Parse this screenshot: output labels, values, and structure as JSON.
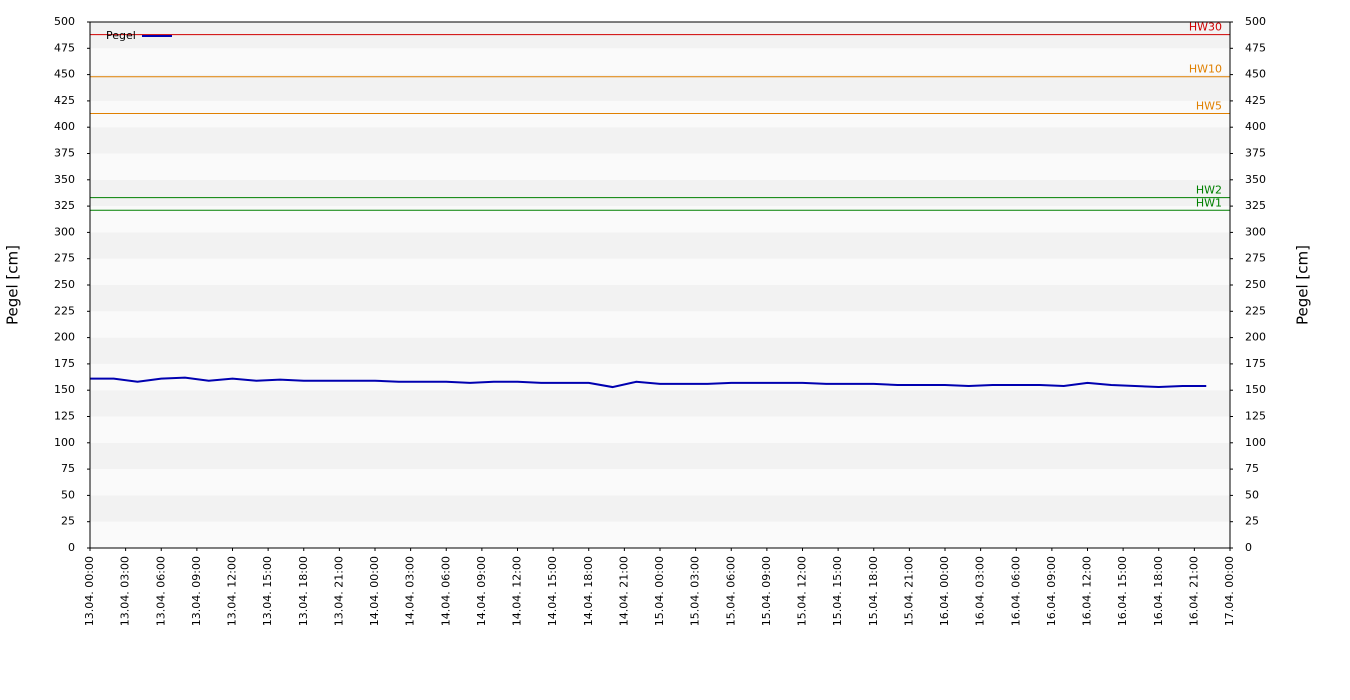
{
  "chart_data": {
    "type": "line",
    "ylabel": "Pegel [cm]",
    "y2label": "Pegel [cm]",
    "ylim": [
      0,
      500
    ],
    "yticks": [
      0,
      25,
      50,
      75,
      100,
      125,
      150,
      175,
      200,
      225,
      250,
      275,
      300,
      325,
      350,
      375,
      400,
      425,
      450,
      475,
      500
    ],
    "y2lim": [
      0,
      500
    ],
    "y2ticks": [
      0,
      25,
      50,
      75,
      100,
      125,
      150,
      175,
      200,
      225,
      250,
      275,
      300,
      325,
      350,
      375,
      400,
      425,
      450,
      475,
      500
    ],
    "xlim": [
      "13.04. 00:00",
      "17.04. 00:00"
    ],
    "xticks": [
      "13.04. 00:00",
      "13.04. 03:00",
      "13.04. 06:00",
      "13.04. 09:00",
      "13.04. 12:00",
      "13.04. 15:00",
      "13.04. 18:00",
      "13.04. 21:00",
      "14.04. 00:00",
      "14.04. 03:00",
      "14.04. 06:00",
      "14.04. 09:00",
      "14.04. 12:00",
      "14.04. 15:00",
      "14.04. 18:00",
      "14.04. 21:00",
      "15.04. 00:00",
      "15.04. 03:00",
      "15.04. 06:00",
      "15.04. 09:00",
      "15.04. 12:00",
      "15.04. 15:00",
      "15.04. 18:00",
      "15.04. 21:00",
      "16.04. 00:00",
      "16.04. 03:00",
      "16.04. 06:00",
      "16.04. 09:00",
      "16.04. 12:00",
      "16.04. 15:00",
      "16.04. 18:00",
      "16.04. 21:00",
      "17.04. 00:00"
    ],
    "x": [
      "13.04. 00:00",
      "13.04. 02:00",
      "13.04. 04:00",
      "13.04. 06:00",
      "13.04. 08:00",
      "13.04. 10:00",
      "13.04. 12:00",
      "13.04. 14:00",
      "13.04. 16:00",
      "13.04. 18:00",
      "13.04. 20:00",
      "13.04. 22:00",
      "14.04. 00:00",
      "14.04. 02:00",
      "14.04. 04:00",
      "14.04. 06:00",
      "14.04. 08:00",
      "14.04. 10:00",
      "14.04. 12:00",
      "14.04. 14:00",
      "14.04. 16:00",
      "14.04. 18:00",
      "14.04. 20:00",
      "14.04. 22:00",
      "15.04. 00:00",
      "15.04. 02:00",
      "15.04. 04:00",
      "15.04. 06:00",
      "15.04. 08:00",
      "15.04. 10:00",
      "15.04. 12:00",
      "15.04. 14:00",
      "15.04. 16:00",
      "15.04. 18:00",
      "15.04. 20:00",
      "15.04. 22:00",
      "16.04. 00:00",
      "16.04. 02:00",
      "16.04. 04:00",
      "16.04. 06:00",
      "16.04. 08:00",
      "16.04. 10:00",
      "16.04. 12:00",
      "16.04. 14:00",
      "16.04. 16:00",
      "16.04. 18:00",
      "16.04. 20:00",
      "16.04. 22:00"
    ],
    "series": [
      {
        "name": "Pegel",
        "color": "#0000b0",
        "values": [
          161,
          161,
          158,
          161,
          162,
          159,
          161,
          159,
          160,
          159,
          159,
          159,
          159,
          158,
          158,
          158,
          157,
          158,
          158,
          157,
          157,
          157,
          153,
          158,
          156,
          156,
          156,
          157,
          157,
          157,
          157,
          156,
          156,
          156,
          155,
          155,
          155,
          154,
          155,
          155,
          155,
          154,
          157,
          155,
          154,
          153,
          154,
          154
        ]
      }
    ],
    "thresholds": [
      {
        "label": "HW30",
        "value": 488,
        "color": "#d00000"
      },
      {
        "label": "HW10",
        "value": 448,
        "color": "#e08000"
      },
      {
        "label": "HW5",
        "value": 413,
        "color": "#e08000"
      },
      {
        "label": "HW2",
        "value": 333,
        "color": "#008000"
      },
      {
        "label": "HW1",
        "value": 321,
        "color": "#008000"
      }
    ],
    "grid": true,
    "legend": "upper left"
  }
}
